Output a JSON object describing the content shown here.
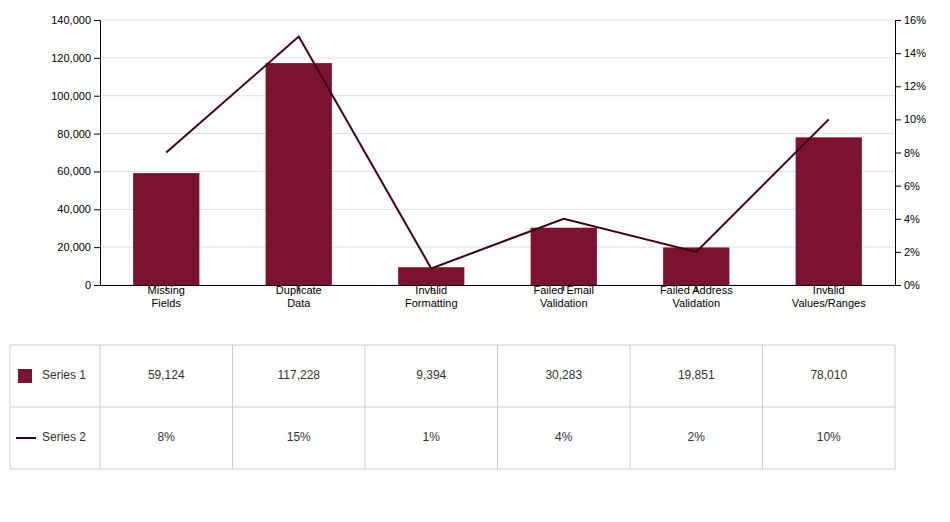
{
  "chart_data": {
    "type": "bar",
    "categories": [
      "Missing\nFields",
      "Duplicate\nData",
      "Invalid\nFormatting",
      "Failed Email\nValidation",
      "Failed Address\nValidation",
      "Invalid\nValues/Ranges"
    ],
    "series": [
      {
        "name": "Series 1",
        "type": "bar",
        "color": "#7B1230",
        "values": [
          59124,
          117228,
          9394,
          30283,
          19851,
          78010
        ],
        "value_labels": [
          "59,124",
          "117,228",
          "9,394",
          "30,283",
          "19,851",
          "78,010"
        ]
      },
      {
        "name": "Series 2",
        "type": "line",
        "color": "#3D0018",
        "axis": "y2",
        "values": [
          8,
          15,
          1,
          4,
          2,
          10
        ],
        "value_labels": [
          "8%",
          "15%",
          "1%",
          "4%",
          "2%",
          "10%"
        ]
      }
    ],
    "ylim": [
      0,
      140000
    ],
    "yticks": [
      0,
      {
        "value": 20000,
        "label": "20,000"
      },
      {
        "value": 40000,
        "label": "40,000"
      },
      {
        "value": 60000,
        "label": "60,000"
      },
      {
        "value": 80000,
        "label": "80,000"
      },
      {
        "value": 100000,
        "label": "100,000"
      },
      {
        "value": 120000,
        "label": "120,000"
      },
      {
        "value": 140000,
        "label": "140,000"
      }
    ],
    "y2lim": [
      0,
      16
    ],
    "y2ticks": [
      {
        "value": 0,
        "label": "0%"
      },
      {
        "value": 2,
        "label": "2%"
      },
      {
        "value": 4,
        "label": "4%"
      },
      {
        "value": 6,
        "label": "6%"
      },
      {
        "value": 8,
        "label": "8%"
      },
      {
        "value": 10,
        "label": "10%"
      },
      {
        "value": 12,
        "label": "12%"
      },
      {
        "value": 14,
        "label": "14%"
      },
      {
        "value": 16,
        "label": "16%"
      }
    ],
    "grid": true,
    "legend": "bottom"
  }
}
